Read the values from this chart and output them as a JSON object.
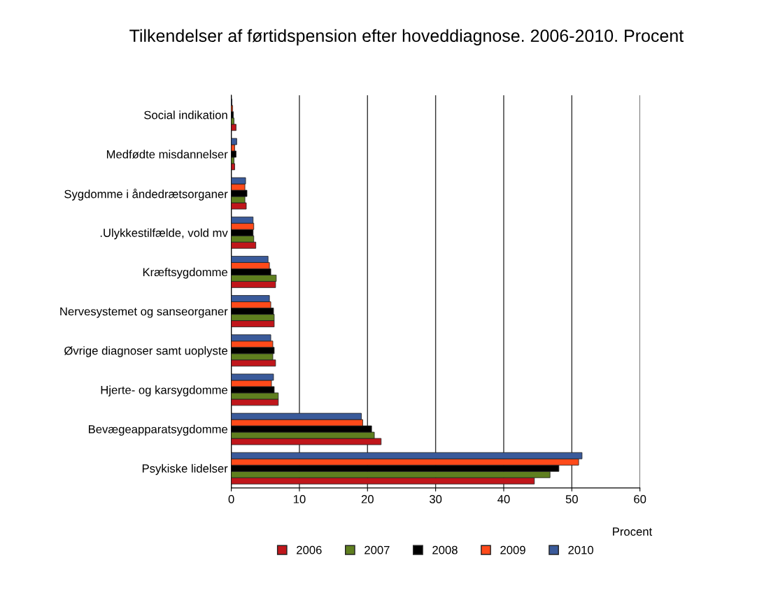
{
  "chart_data": {
    "type": "bar",
    "orientation": "horizontal",
    "title": "Tilkendelser af førtidspension efter hoveddiagnose. 2006-2010. Procent",
    "xlabel": "Procent",
    "categories": [
      "Social indikation",
      "Medfødte misdannelser",
      "Sygdomme i åndedrætsorganer",
      ".Ulykkestilfælde, vold mv",
      "Kræftsygdomme",
      "Nervesystemet og sanseorganer",
      "Øvrige diagnoser samt uoplyste",
      "Hjerte- og karsygdomme",
      "Bevægeapparatsygdomme",
      "Psykiske lidelser"
    ],
    "series": [
      {
        "name": "2006",
        "color": "#c0161b",
        "values": [
          0.7,
          0.5,
          2.2,
          3.6,
          6.5,
          6.3,
          6.5,
          6.9,
          22.0,
          44.5
        ]
      },
      {
        "name": "2007",
        "color": "#5f7f1f",
        "values": [
          0.4,
          0.4,
          2.0,
          3.3,
          6.6,
          6.3,
          6.1,
          6.9,
          21.0,
          46.8
        ]
      },
      {
        "name": "2008",
        "color": "#000000",
        "values": [
          0.3,
          0.7,
          2.3,
          3.2,
          5.8,
          6.2,
          6.3,
          6.3,
          20.6,
          48.1
        ]
      },
      {
        "name": "2009",
        "color": "#ff4a1a",
        "values": [
          0.2,
          0.5,
          2.0,
          3.3,
          5.6,
          5.8,
          6.1,
          5.9,
          19.3,
          51.0
        ]
      },
      {
        "name": "2010",
        "color": "#3a5a9a",
        "values": [
          0.1,
          0.8,
          2.1,
          3.2,
          5.4,
          5.6,
          5.8,
          6.2,
          19.1,
          51.5
        ]
      }
    ],
    "xlim": [
      0,
      60
    ],
    "xticks": [
      0,
      10,
      20,
      30,
      40,
      50,
      60
    ],
    "grid": "x",
    "legend": "bottom"
  }
}
